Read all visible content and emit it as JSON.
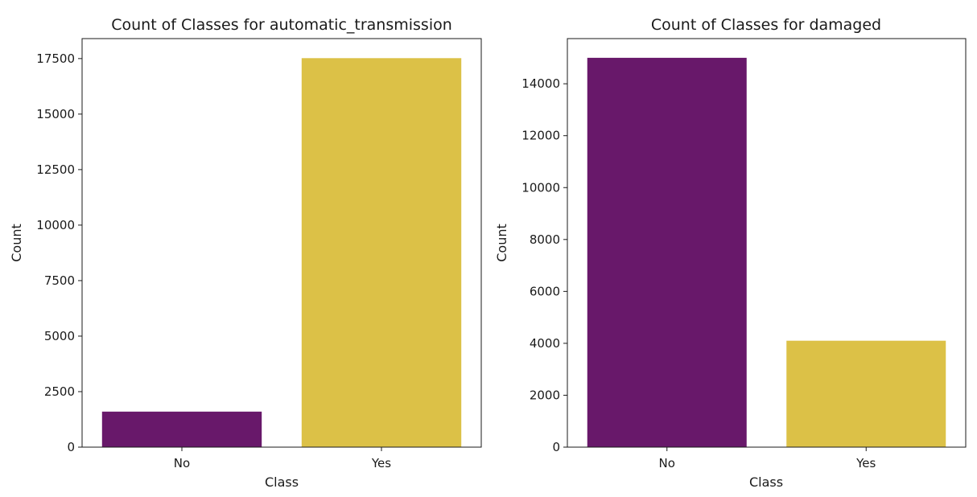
{
  "chart_data": [
    {
      "type": "bar",
      "title": "Count of Classes for automatic_transmission",
      "xlabel": "Class",
      "ylabel": "Count",
      "categories": [
        "No",
        "Yes"
      ],
      "values": [
        1600,
        17520
      ],
      "colors": [
        "#68186a",
        "#dcc147"
      ],
      "ylim": [
        0,
        18400
      ],
      "yticks": [
        0,
        2500,
        5000,
        7500,
        10000,
        12500,
        15000,
        17500
      ],
      "grid": false
    },
    {
      "type": "bar",
      "title": "Count of Classes for damaged",
      "xlabel": "Class",
      "ylabel": "Count",
      "categories": [
        "No",
        "Yes"
      ],
      "values": [
        15000,
        4100
      ],
      "colors": [
        "#68186a",
        "#dcc147"
      ],
      "ylim": [
        0,
        15740
      ],
      "yticks": [
        0,
        2000,
        4000,
        6000,
        8000,
        10000,
        12000,
        14000
      ],
      "grid": false
    }
  ]
}
